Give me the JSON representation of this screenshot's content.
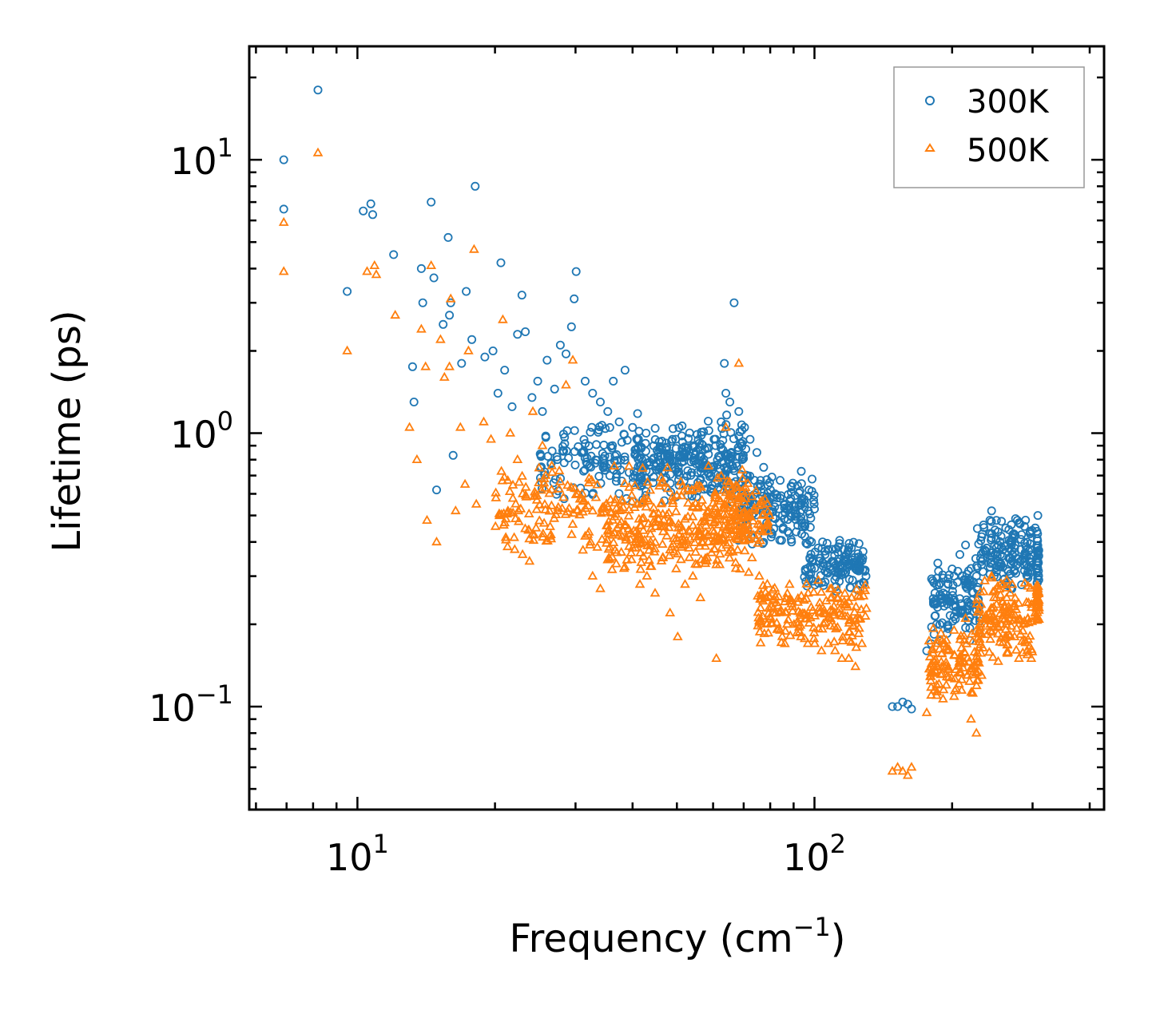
{
  "chart_data": {
    "type": "scatter",
    "title": "",
    "xlabel": "Frequency (cm",
    "xlabel_sup": "−1",
    "xlabel_end": ")",
    "ylabel": "Lifetime (ps)",
    "xscale": "log",
    "yscale": "log",
    "xlim": [
      5.8,
      430
    ],
    "ylim": [
      0.042,
      26
    ],
    "x_ticks": [
      {
        "value": 10,
        "base": "10",
        "exp": "1"
      },
      {
        "value": 100,
        "base": "10",
        "exp": "2"
      }
    ],
    "y_ticks": [
      {
        "value": 0.1,
        "base": "10",
        "exp": "−1"
      },
      {
        "value": 1,
        "base": "10",
        "exp": "0"
      },
      {
        "value": 10,
        "base": "10",
        "exp": "1"
      }
    ],
    "legend": {
      "position": "top-right",
      "entries": [
        "300K",
        "500K"
      ]
    },
    "colors": {
      "300K": "#1f77b4",
      "500K": "#ff7f0e"
    },
    "series": [
      {
        "name": "300K",
        "marker": "circle",
        "color": "#1f77b4",
        "x": [
          6.9,
          6.9,
          8.2,
          9.5,
          10.3,
          10.7,
          10.8,
          12.0,
          13.2,
          13.3,
          13.8,
          13.9,
          14.5,
          14.7,
          14.9,
          15.4,
          15.8,
          15.9,
          16.0,
          16.2,
          16.9,
          17.3,
          17.8,
          18.1,
          19.0,
          19.8,
          20.3,
          20.6,
          21.0,
          21.8,
          22.4,
          22.9,
          23.3,
          24.1,
          24.8,
          25.4,
          26.0,
          27.0,
          27.8,
          28.6,
          29.4,
          29.8,
          30.1,
          31.5,
          32.7,
          34.0,
          35.3,
          36.3,
          37.4,
          38.5,
          40.0,
          41.2,
          42.8,
          44.5,
          45.6,
          47.2,
          48.9,
          50.6,
          52.4,
          54.3,
          56.2,
          58.2,
          60.3,
          62.5,
          63.5,
          64.0,
          65.3,
          66.7,
          68.3,
          70.3,
          72.3,
          74.8,
          77.4,
          80.1,
          82.9,
          85.8,
          88.8,
          91.9,
          95.2,
          98.5,
          101.9,
          105.5,
          109.2,
          113.0,
          117.0,
          121.1,
          125.3,
          129.6,
          148.0,
          152.0,
          156.0,
          160.0,
          163.0,
          176.0,
          180.0,
          185.0,
          190.0,
          196.0,
          202.0,
          208.0,
          214.0,
          220.0,
          226.0,
          232.0,
          238.0,
          244.0,
          250.0,
          256.0,
          262.0,
          268.0,
          274.0,
          280.0,
          286.0,
          292.0,
          298.0,
          304.0,
          308.0
        ],
        "y": [
          10.0,
          6.6,
          18.0,
          3.3,
          6.5,
          6.9,
          6.3,
          4.5,
          1.75,
          1.3,
          4.0,
          3.0,
          7.0,
          3.7,
          0.62,
          2.5,
          5.2,
          2.7,
          3.0,
          0.83,
          1.8,
          3.3,
          2.2,
          8.0,
          1.9,
          2.0,
          1.4,
          4.2,
          1.7,
          1.25,
          2.3,
          3.2,
          2.35,
          1.35,
          1.55,
          1.2,
          1.85,
          1.45,
          2.1,
          1.95,
          2.45,
          3.1,
          3.9,
          1.55,
          1.4,
          1.3,
          1.2,
          1.55,
          1.1,
          1.7,
          1.05,
          0.95,
          1.0,
          0.9,
          0.85,
          0.88,
          0.95,
          0.83,
          0.86,
          0.9,
          0.82,
          0.88,
          0.95,
          1.1,
          1.8,
          1.4,
          1.3,
          3.0,
          1.2,
          1.05,
          0.95,
          0.85,
          0.75,
          0.62,
          0.58,
          0.55,
          0.5,
          0.46,
          0.42,
          0.4,
          0.38,
          0.36,
          0.34,
          0.32,
          0.31,
          0.29,
          0.28,
          0.3,
          0.1,
          0.1,
          0.104,
          0.102,
          0.098,
          0.16,
          0.17,
          0.2,
          0.24,
          0.28,
          0.3,
          0.36,
          0.39,
          0.32,
          0.3,
          0.33,
          0.38,
          0.52,
          0.48,
          0.42,
          0.45,
          0.4,
          0.38,
          0.47,
          0.35,
          0.3,
          0.31,
          0.45,
          0.5
        ],
        "dense": [
          {
            "x0": 25,
            "x1": 70,
            "y0": 0.55,
            "y1": 1.2,
            "n": 260
          },
          {
            "x0": 40,
            "x1": 72,
            "y0": 0.55,
            "y1": 1.0,
            "n": 140
          },
          {
            "x0": 68,
            "x1": 100,
            "y0": 0.38,
            "y1": 0.75,
            "n": 160
          },
          {
            "x0": 95,
            "x1": 130,
            "y0": 0.26,
            "y1": 0.42,
            "n": 130
          },
          {
            "x0": 180,
            "x1": 230,
            "y0": 0.17,
            "y1": 0.34,
            "n": 120
          },
          {
            "x0": 225,
            "x1": 300,
            "y0": 0.26,
            "y1": 0.5,
            "n": 140
          },
          {
            "x0": 306,
            "x1": 310,
            "y0": 0.24,
            "y1": 0.48,
            "n": 30
          }
        ]
      },
      {
        "name": "500K",
        "marker": "triangle",
        "color": "#ff7f0e",
        "x": [
          6.9,
          6.9,
          8.2,
          9.5,
          10.5,
          10.9,
          11.0,
          12.1,
          13.0,
          13.5,
          13.8,
          14.1,
          14.2,
          14.5,
          14.9,
          15.2,
          15.5,
          15.9,
          16.0,
          16.4,
          16.8,
          17.2,
          17.5,
          18.0,
          18.2,
          18.9,
          19.6,
          20.1,
          20.8,
          21.0,
          21.6,
          22.4,
          23.0,
          23.8,
          24.2,
          24.6,
          25.4,
          26.4,
          27.4,
          28.6,
          29.6,
          30.4,
          31.5,
          32.7,
          34.0,
          35.5,
          37.0,
          38.3,
          40.0,
          41.5,
          43.0,
          44.8,
          46.5,
          48.3,
          50.2,
          52.1,
          54.2,
          56.3,
          58.6,
          61.0,
          63.5,
          64.0,
          66.0,
          68.3,
          70.5,
          73.0,
          75.7,
          78.4,
          81.2,
          84.1,
          87.1,
          90.2,
          93.4,
          96.7,
          100.1,
          103.6,
          107.2,
          110.9,
          114.8,
          118.8,
          122.9,
          127.0,
          148.0,
          152.0,
          156.0,
          160.0,
          163.0,
          176.0,
          180.0,
          185.0,
          190.0,
          196.0,
          202.0,
          208.0,
          214.0,
          220.0,
          226.0,
          232.0,
          238.0,
          244.0,
          250.0,
          256.0,
          262.0,
          268.0,
          274.0,
          280.0,
          286.0,
          292.0,
          298.0,
          304.0,
          308.0
        ],
        "y": [
          5.9,
          3.9,
          10.6,
          2.0,
          3.9,
          4.1,
          3.8,
          2.7,
          1.05,
          0.8,
          2.4,
          1.75,
          0.48,
          4.1,
          0.4,
          2.2,
          1.6,
          1.75,
          3.1,
          0.52,
          1.05,
          0.65,
          2.0,
          4.7,
          0.55,
          1.1,
          0.95,
          0.58,
          2.6,
          0.47,
          1.0,
          0.8,
          0.6,
          0.34,
          1.2,
          0.45,
          0.9,
          0.42,
          0.52,
          1.5,
          1.85,
          0.6,
          0.42,
          0.3,
          0.27,
          0.35,
          0.45,
          0.32,
          0.38,
          0.28,
          0.3,
          0.26,
          0.35,
          0.22,
          0.18,
          0.28,
          0.3,
          0.25,
          0.4,
          0.15,
          0.55,
          1.05,
          0.6,
          1.8,
          0.45,
          0.35,
          0.3,
          0.25,
          0.22,
          0.19,
          0.2,
          0.2,
          0.18,
          0.17,
          0.17,
          0.16,
          0.17,
          0.16,
          0.15,
          0.15,
          0.14,
          0.17,
          0.058,
          0.06,
          0.058,
          0.056,
          0.06,
          0.095,
          0.11,
          0.12,
          0.14,
          0.16,
          0.19,
          0.15,
          0.21,
          0.09,
          0.08,
          0.13,
          0.21,
          0.3,
          0.25,
          0.2,
          0.22,
          0.26,
          0.18,
          0.15,
          0.2,
          0.16,
          0.15,
          0.22,
          0.27
        ],
        "dense": [
          {
            "x0": 20,
            "x1": 72,
            "y0": 0.34,
            "y1": 0.8,
            "n": 300
          },
          {
            "x0": 35,
            "x1": 72,
            "y0": 0.3,
            "y1": 0.55,
            "n": 150
          },
          {
            "x0": 60,
            "x1": 80,
            "y0": 0.35,
            "y1": 0.7,
            "n": 100
          },
          {
            "x0": 75,
            "x1": 130,
            "y0": 0.16,
            "y1": 0.3,
            "n": 180
          },
          {
            "x0": 178,
            "x1": 230,
            "y0": 0.1,
            "y1": 0.2,
            "n": 120
          },
          {
            "x0": 225,
            "x1": 300,
            "y0": 0.14,
            "y1": 0.3,
            "n": 140
          },
          {
            "x0": 306,
            "x1": 310,
            "y0": 0.2,
            "y1": 0.29,
            "n": 30
          }
        ]
      }
    ]
  }
}
